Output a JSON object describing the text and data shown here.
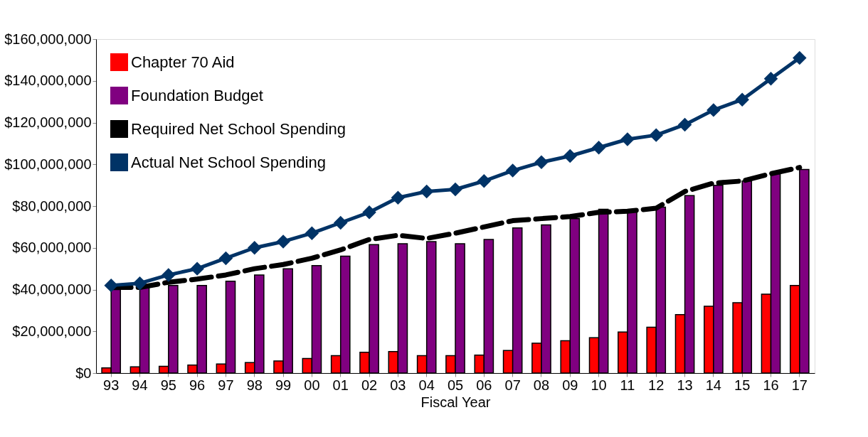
{
  "chart_data": {
    "type": "bar",
    "xlabel": "Fiscal Year",
    "categories": [
      "93",
      "94",
      "95",
      "96",
      "97",
      "98",
      "99",
      "00",
      "01",
      "02",
      "03",
      "04",
      "05",
      "06",
      "07",
      "08",
      "09",
      "10",
      "11",
      "12",
      "13",
      "14",
      "15",
      "16",
      "17"
    ],
    "ylim": [
      0,
      160000000
    ],
    "yticks": [
      {
        "value": 0,
        "label": "$0"
      },
      {
        "value": 20000000,
        "label": "$20,000,000"
      },
      {
        "value": 40000000,
        "label": "$40,000,000"
      },
      {
        "value": 60000000,
        "label": "$60,000,000"
      },
      {
        "value": 80000000,
        "label": "$80,000,000"
      },
      {
        "value": 100000000,
        "label": "$100,000,000"
      },
      {
        "value": 120000000,
        "label": "$120,000,000"
      },
      {
        "value": 140000000,
        "label": "$140,000,000"
      },
      {
        "value": 160000000,
        "label": "$160,000,000"
      }
    ],
    "grid": false,
    "legend": "top left",
    "series": [
      {
        "name": "Chapter 70 Aid",
        "color": "#ff0000",
        "values": [
          2500000,
          3000000,
          3200000,
          3800000,
          4300000,
          5000000,
          5800000,
          7000000,
          8300000,
          10000000,
          10300000,
          8300000,
          8300000,
          8600000,
          10800000,
          14300000,
          15500000,
          16900000,
          19700000,
          22000000,
          28000000,
          32000000,
          33700000,
          37800000,
          42000000
        ]
      },
      {
        "name": "Foundation Budget",
        "color": "#800080",
        "values": [
          40000000,
          41000000,
          42000000,
          42000000,
          44000000,
          47000000,
          50000000,
          51500000,
          56000000,
          61500000,
          62000000,
          63000000,
          62000000,
          64000000,
          69500000,
          71000000,
          74000000,
          78500000,
          78000000,
          79500000,
          85000000,
          90000000,
          92000000,
          95500000,
          97500000
        ]
      },
      {
        "name": "Required Net School Spending",
        "type": "line",
        "color": "#000000",
        "line_style": "dashed",
        "marker": "none",
        "values": [
          41000000,
          41000000,
          43500000,
          45000000,
          47000000,
          50000000,
          52000000,
          55000000,
          59000000,
          64000000,
          66000000,
          64500000,
          67000000,
          70000000,
          73000000,
          74000000,
          75000000,
          77000000,
          77500000,
          79000000,
          87000000,
          91000000,
          92000000,
          95500000,
          98500000
        ]
      },
      {
        "name": "Actual Net School Spending",
        "type": "line",
        "color": "#003366",
        "line_style": "solid",
        "marker": "diamond",
        "values": [
          42000000,
          43000000,
          47000000,
          50000000,
          55000000,
          60000000,
          63000000,
          67000000,
          72000000,
          77000000,
          84000000,
          87000000,
          88000000,
          92000000,
          97000000,
          101000000,
          104000000,
          108000000,
          112000000,
          114000000,
          119000000,
          126000000,
          131000000,
          141000000,
          151000000
        ]
      }
    ]
  }
}
